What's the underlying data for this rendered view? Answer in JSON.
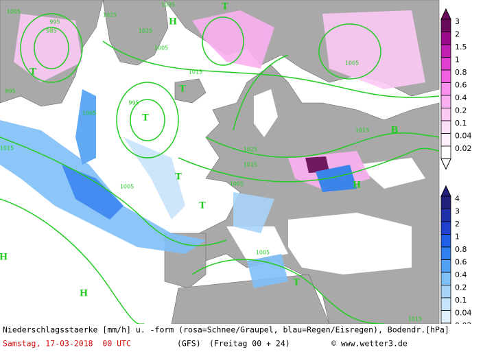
{
  "map": {
    "labels": [
      "1005",
      "995",
      "985",
      "995",
      "T",
      "H",
      "1025",
      "1035",
      "T",
      "1005",
      "T",
      "995",
      "1025",
      "1015",
      "T",
      "1005",
      "1015",
      "1005",
      "1025",
      "1015",
      "1005",
      "T",
      "H",
      "T",
      "H",
      "T",
      "1015",
      "1005",
      "B",
      "1015",
      "1005",
      "H"
    ]
  },
  "legends": [
    {
      "name": "snow",
      "values": [
        3,
        2,
        1.5,
        1,
        0.8,
        0.6,
        0.4,
        0.2,
        0.1,
        0.04,
        0.02
      ],
      "colors": [
        "#6a0a5a",
        "#9a0a8a",
        "#c020b0",
        "#e040d0",
        "#f060e0",
        "#f890ec",
        "#fab0f0",
        "#fcc8f4",
        "#fde0f8",
        "#fff0fc",
        "#ffffff"
      ]
    },
    {
      "name": "rain",
      "values": [
        4,
        3,
        2,
        1,
        0.8,
        0.6,
        0.4,
        0.2,
        0.1,
        0.04,
        0.02
      ],
      "colors": [
        "#20207a",
        "#2030a8",
        "#2040d0",
        "#2060e8",
        "#3080f0",
        "#50a0f4",
        "#80c0f8",
        "#a8d4fa",
        "#c8e4fc",
        "#e0f0fe",
        "#ffffff"
      ]
    }
  ],
  "footer": {
    "description": "Niederschlagsstaerke [mm/h] u. -form (rosa=Schnee/Graupel, blau=Regen/Eisregen), Bodendr.[hPa]",
    "date": "Samstag, 17-03-2018  00 UTC",
    "model": "(GFS)",
    "run": "(Freitag 00 + 24)",
    "site": "© www.wetter3.de"
  }
}
